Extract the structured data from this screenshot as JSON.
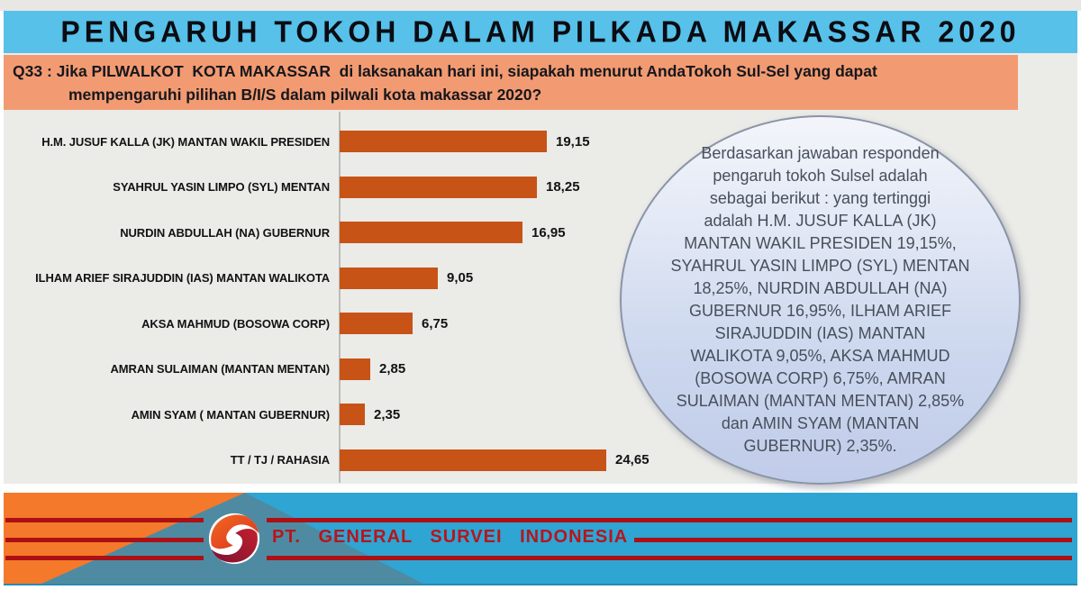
{
  "slide": {
    "title": "PENGARUH TOKOH DALAM PILKADA MAKASSAR 2020"
  },
  "question": {
    "line1": "Q33 : Jika PILWALKOT  KOTA MAKASSAR  di laksanakan hari ini, siapakah menurut AndaTokoh Sul-Sel yang dapat",
    "line2": "mempengaruhi pilihan B/I/S dalam pilwali kota makassar 2020?"
  },
  "chart_data": {
    "type": "bar",
    "orientation": "horizontal",
    "title": "PENGARUH TOKOH DALAM PILKADA MAKASSAR 2020",
    "categories": [
      "H.M. JUSUF KALLA (JK) MANTAN WAKIL PRESIDEN",
      "SYAHRUL YASIN LIMPO (SYL) MENTAN",
      "NURDIN ABDULLAH (NA) GUBERNUR",
      "ILHAM ARIEF SIRAJUDDIN (IAS) MANTAN WALIKOTA",
      "AKSA MAHMUD (BOSOWA CORP)",
      "AMRAN SULAIMAN (MANTAN MENTAN)",
      "AMIN SYAM ( MANTAN GUBERNUR)",
      "TT / TJ / RAHASIA"
    ],
    "values": [
      19.15,
      18.25,
      16.95,
      9.05,
      6.75,
      2.85,
      2.35,
      24.65
    ],
    "value_labels": [
      "19,15",
      "18,25",
      "16,95",
      "9,05",
      "6,75",
      "2,85",
      "2,35",
      "24,65"
    ],
    "unit": "%",
    "xlim": [
      0,
      26
    ],
    "grid": false,
    "legend": false,
    "bar_color": "#c75317"
  },
  "callout": {
    "text": "Berdasarkan jawaban responden\npengaruh tokoh Sulsel adalah\nsebagai berikut : yang tertinggi\nadalah H.M. JUSUF KALLA (JK)\nMANTAN WAKIL PRESIDEN 19,15%,\nSYAHRUL YASIN LIMPO (SYL) MENTAN\n18,25%, NURDIN ABDULLAH (NA)\nGUBERNUR 16,95%, ILHAM ARIEF\nSIRAJUDDIN (IAS) MANTAN\nWALIKOTA 9,05%, AKSA MAHMUD\n(BOSOWA CORP) 6,75%, AMRAN\nSULAIMAN (MANTAN MENTAN) 2,85%\ndan AMIN SYAM (MANTAN\nGUBERNUR) 2,35%."
  },
  "footer": {
    "company": "PT. GENERAL SURVEI INDONESIA"
  },
  "colors": {
    "title_band": "#57c1ea",
    "question_band": "#f29b72",
    "chart_panel": "#ebebe8",
    "bar": "#c75317",
    "footer_band": "#2ea5d3",
    "footer_orange": "#f4792b",
    "footer_teal": "#4e8ba2",
    "accent_red": "#ac1015",
    "company_text": "#b5161d",
    "oval_border": "#8a94a6",
    "oval_fill_top": "#f3f5fa",
    "oval_fill_bottom": "#c0cce9",
    "oval_text": "#474f5b"
  }
}
